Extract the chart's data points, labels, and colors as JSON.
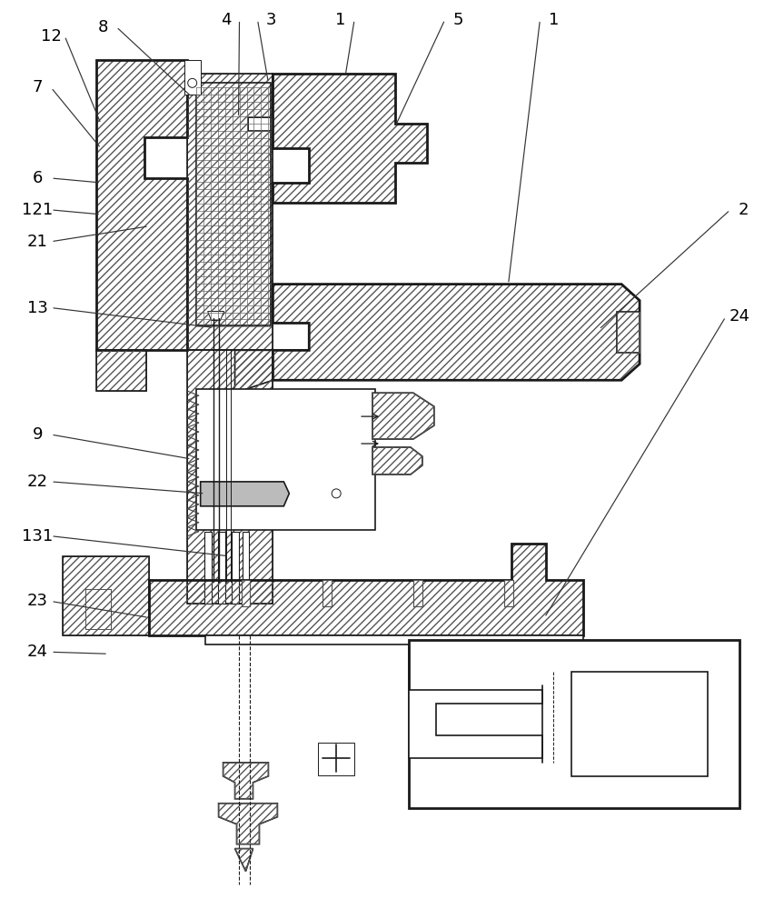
{
  "background_color": "#ffffff",
  "line_color": "#1a1a1a",
  "figsize": [
    8.52,
    10.0
  ],
  "dpi": 100
}
